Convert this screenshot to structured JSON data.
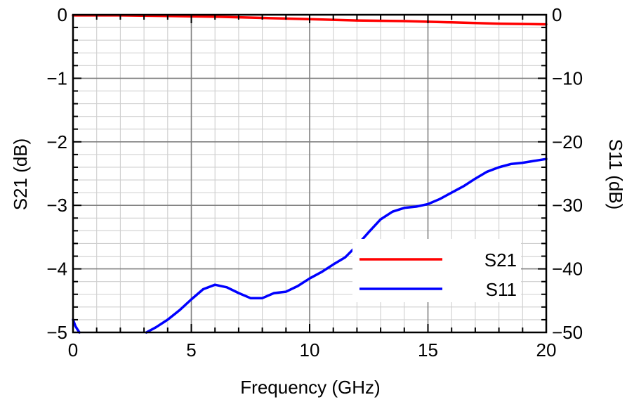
{
  "chart_data": {
    "type": "line",
    "title": "",
    "xlabel": "Frequency (GHz)",
    "ylabel_left": "S21 (dB)",
    "ylabel_right": "S11 (dB)",
    "xlim": [
      0,
      20
    ],
    "ylim_left": [
      -5,
      0
    ],
    "ylim_right": [
      -50,
      0
    ],
    "x_ticks": [
      {
        "value": 0,
        "label": "0"
      },
      {
        "value": 5,
        "label": "5"
      },
      {
        "value": 10,
        "label": "10"
      },
      {
        "value": 15,
        "label": "15"
      },
      {
        "value": 20,
        "label": "20"
      }
    ],
    "y_ticks_left": [
      {
        "value": 0,
        "label": "0"
      },
      {
        "value": -1,
        "label": "−1"
      },
      {
        "value": -2,
        "label": "−2"
      },
      {
        "value": -3,
        "label": "−3"
      },
      {
        "value": -4,
        "label": "−4"
      },
      {
        "value": -5,
        "label": "−5"
      }
    ],
    "y_ticks_right": [
      {
        "value": 0,
        "label": "0"
      },
      {
        "value": -10,
        "label": "−10"
      },
      {
        "value": -20,
        "label": "−20"
      },
      {
        "value": -30,
        "label": "−30"
      },
      {
        "value": -40,
        "label": "−40"
      },
      {
        "value": -50,
        "label": "−50"
      }
    ],
    "grid": true,
    "legend_position": "bottom-right",
    "series": [
      {
        "name": "S21",
        "axis": "left",
        "color": "#ff0000",
        "x": [
          0,
          2,
          4,
          6,
          8,
          10,
          12,
          14,
          16,
          18,
          20
        ],
        "y": [
          -0.01,
          -0.01,
          -0.02,
          -0.03,
          -0.05,
          -0.07,
          -0.09,
          -0.1,
          -0.12,
          -0.14,
          -0.15
        ]
      },
      {
        "name": "S11",
        "axis": "right",
        "color": "#0000ff",
        "segments": [
          {
            "x": [
              0.0,
              0.1,
              0.2,
              0.27
            ],
            "y": [
              -48.0,
              -49.0,
              -49.6,
              -50.0
            ]
          },
          {
            "x": [
              3.1,
              3.5,
              4.0,
              4.5,
              5.0,
              5.5,
              6.0,
              6.5,
              7.0,
              7.5,
              8.0,
              8.5,
              9.0,
              9.5,
              10.0,
              10.5,
              11.0,
              11.5,
              12.0,
              12.5,
              13.0,
              13.5,
              14.0,
              14.5,
              15.0,
              15.5,
              16.0,
              16.5,
              17.0,
              17.5,
              18.0,
              18.5,
              19.0,
              19.5,
              20.0
            ],
            "y": [
              -50.0,
              -49.2,
              -48.0,
              -46.5,
              -44.8,
              -43.2,
              -42.5,
              -42.9,
              -43.8,
              -44.6,
              -44.6,
              -43.8,
              -43.6,
              -42.7,
              -41.5,
              -40.5,
              -39.3,
              -38.2,
              -36.3,
              -34.2,
              -32.2,
              -31.0,
              -30.4,
              -30.2,
              -29.8,
              -29.0,
              -28.0,
              -27.0,
              -25.8,
              -24.7,
              -24.0,
              -23.5,
              -23.3,
              -23.0,
              -22.7
            ]
          }
        ]
      }
    ]
  }
}
